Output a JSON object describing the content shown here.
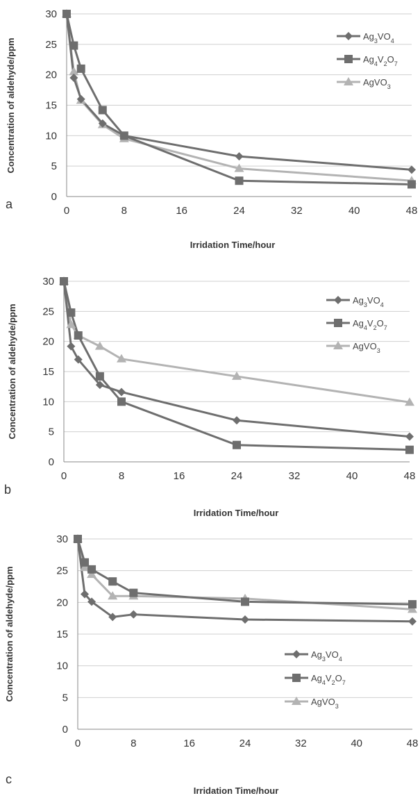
{
  "chart_data": [
    {
      "type": "line",
      "panel": "a",
      "xlabel": "Irridation Time/hour",
      "ylabel": "Concentration of aldehyde/ppm",
      "xlim": [
        0,
        48
      ],
      "ylim": [
        0,
        30
      ],
      "xticks": [
        0,
        8,
        16,
        24,
        32,
        40,
        48
      ],
      "yticks": [
        0,
        5,
        10,
        15,
        20,
        25,
        30
      ],
      "grid": "horizontal",
      "legend": "top-right",
      "series": [
        {
          "name": "Ag3VO4",
          "marker": "diamond",
          "color": "#6e6e6e",
          "points": [
            [
              0,
              30
            ],
            [
              1,
              19.5
            ],
            [
              2,
              16
            ],
            [
              5,
              12
            ],
            [
              8,
              10
            ],
            [
              24,
              6.6
            ],
            [
              48,
              4.4
            ]
          ]
        },
        {
          "name": "Ag4V2O7",
          "marker": "square",
          "color": "#6e6e6e",
          "points": [
            [
              0,
              30
            ],
            [
              1,
              24.8
            ],
            [
              2,
              21
            ],
            [
              5,
              14.2
            ],
            [
              8,
              10
            ],
            [
              24,
              2.6
            ],
            [
              48,
              2
            ]
          ]
        },
        {
          "name": "AgVO3",
          "marker": "triangle",
          "color": "#b3b3b3",
          "points": [
            [
              0,
              30
            ],
            [
              1,
              20.5
            ],
            [
              2,
              15.8
            ],
            [
              5,
              11.8
            ],
            [
              8,
              9.5
            ],
            [
              24,
              4.6
            ],
            [
              48,
              2.6
            ]
          ]
        }
      ]
    },
    {
      "type": "line",
      "panel": "b",
      "xlabel": "Irridation Time/hour",
      "ylabel": "Concentration of aldehyde/ppm",
      "xlim": [
        0,
        48
      ],
      "ylim": [
        0,
        30
      ],
      "xticks": [
        0,
        8,
        16,
        24,
        32,
        40,
        48
      ],
      "yticks": [
        0,
        5,
        10,
        15,
        20,
        25,
        30
      ],
      "grid": "horizontal",
      "legend": "top-right",
      "series": [
        {
          "name": "Ag3VO4",
          "marker": "diamond",
          "color": "#6e6e6e",
          "points": [
            [
              0,
              30
            ],
            [
              1,
              19.2
            ],
            [
              2,
              17
            ],
            [
              5,
              12.8
            ],
            [
              8,
              11.6
            ],
            [
              24,
              6.9
            ],
            [
              48,
              4.2
            ]
          ]
        },
        {
          "name": "Ag4V2O7",
          "marker": "square",
          "color": "#6e6e6e",
          "points": [
            [
              0,
              30
            ],
            [
              1,
              24.8
            ],
            [
              2,
              21
            ],
            [
              5,
              14.2
            ],
            [
              8,
              10
            ],
            [
              24,
              2.8
            ],
            [
              48,
              2
            ]
          ]
        },
        {
          "name": "AgVO3",
          "marker": "triangle",
          "color": "#b3b3b3",
          "points": [
            [
              0,
              30
            ],
            [
              1,
              22.8
            ],
            [
              2,
              21
            ],
            [
              5,
              19.2
            ],
            [
              8,
              17.1
            ],
            [
              24,
              14.2
            ],
            [
              48,
              9.9
            ]
          ]
        }
      ]
    },
    {
      "type": "line",
      "panel": "c",
      "xlabel": "Irridation Time/hour",
      "ylabel": "Concentration of aldehyde/ppm",
      "xlim": [
        0,
        48
      ],
      "ylim": [
        0,
        30
      ],
      "xticks": [
        0,
        8,
        16,
        24,
        32,
        40,
        48
      ],
      "yticks": [
        0,
        5,
        10,
        15,
        20,
        25,
        30
      ],
      "grid": "horizontal",
      "legend": "center-right",
      "series": [
        {
          "name": "Ag3VO4",
          "marker": "diamond",
          "color": "#6e6e6e",
          "points": [
            [
              0,
              30
            ],
            [
              1,
              21.3
            ],
            [
              2,
              20.1
            ],
            [
              5,
              17.7
            ],
            [
              8,
              18.1
            ],
            [
              24,
              17.3
            ],
            [
              48,
              17
            ]
          ]
        },
        {
          "name": "Ag4V2O7",
          "marker": "square",
          "color": "#6e6e6e",
          "points": [
            [
              0,
              30
            ],
            [
              1,
              26.3
            ],
            [
              2,
              25.2
            ],
            [
              5,
              23.3
            ],
            [
              8,
              21.5
            ],
            [
              24,
              20.1
            ],
            [
              48,
              19.7
            ]
          ]
        },
        {
          "name": "AgVO3",
          "marker": "triangle",
          "color": "#b3b3b3",
          "points": [
            [
              0,
              30
            ],
            [
              1,
              25.5
            ],
            [
              2,
              24.4
            ],
            [
              5,
              21
            ],
            [
              8,
              21
            ],
            [
              24,
              20.6
            ],
            [
              48,
              18.9
            ]
          ]
        }
      ]
    }
  ],
  "panels": [
    {
      "letter": "a",
      "legend": [
        {
          "base": "Ag",
          "sub1": "3",
          "mid": "VO",
          "sub2": "4",
          "tail": ""
        },
        {
          "base": "Ag",
          "sub1": "4",
          "mid": "V",
          "sub2": "2",
          "tail": "O",
          "sub3": "7"
        },
        {
          "base": "AgVO",
          "sub1": "3",
          "mid": "",
          "sub2": "",
          "tail": ""
        }
      ]
    },
    {
      "letter": "b",
      "legend": [
        {
          "base": "Ag",
          "sub1": "3",
          "mid": "VO",
          "sub2": "4",
          "tail": ""
        },
        {
          "base": "Ag",
          "sub1": "4",
          "mid": "V",
          "sub2": "2",
          "tail": "O",
          "sub3": "7"
        },
        {
          "base": "AgVO",
          "sub1": "3",
          "mid": "",
          "sub2": "",
          "tail": ""
        }
      ]
    },
    {
      "letter": "c",
      "legend": [
        {
          "base": "Ag",
          "sub1": "3",
          "mid": "VO",
          "sub2": "4",
          "tail": ""
        },
        {
          "base": "Ag",
          "sub1": "4",
          "mid": "V",
          "sub2": "2",
          "tail": "O",
          "sub3": "7"
        },
        {
          "base": "AgVO",
          "sub1": "3",
          "mid": "",
          "sub2": "",
          "tail": ""
        }
      ]
    }
  ]
}
